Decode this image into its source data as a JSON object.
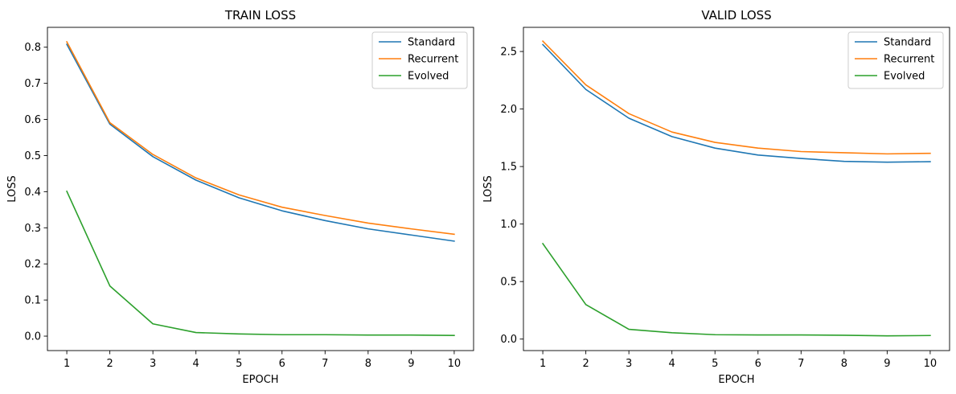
{
  "chart_data": [
    {
      "type": "line",
      "title": "TRAIN LOSS",
      "xlabel": "EPOCH",
      "ylabel": "LOSS",
      "x": [
        1,
        2,
        3,
        4,
        5,
        6,
        7,
        8,
        9,
        10
      ],
      "xlim": [
        0.55,
        10.45
      ],
      "ylim": [
        -0.04,
        0.855
      ],
      "yticks": [
        0.0,
        0.1,
        0.2,
        0.3,
        0.4,
        0.5,
        0.6,
        0.7,
        0.8
      ],
      "yticks_labels": [
        "0.0",
        "0.1",
        "0.2",
        "0.3",
        "0.4",
        "0.5",
        "0.6",
        "0.7",
        "0.8"
      ],
      "grid": false,
      "legend": "top-right",
      "series": [
        {
          "name": "Standard",
          "color": "#1f77b4",
          "values": [
            0.808,
            0.587,
            0.497,
            0.432,
            0.383,
            0.347,
            0.32,
            0.297,
            0.28,
            0.263
          ]
        },
        {
          "name": "Recurrent",
          "color": "#ff7f0e",
          "values": [
            0.815,
            0.591,
            0.503,
            0.438,
            0.391,
            0.357,
            0.334,
            0.313,
            0.297,
            0.282
          ]
        },
        {
          "name": "Evolved",
          "color": "#2ca02c",
          "values": [
            0.401,
            0.139,
            0.034,
            0.01,
            0.006,
            0.004,
            0.004,
            0.003,
            0.003,
            0.002
          ]
        }
      ]
    },
    {
      "type": "line",
      "title": "VALID LOSS",
      "xlabel": "EPOCH",
      "ylabel": "LOSS",
      "x": [
        1,
        2,
        3,
        4,
        5,
        6,
        7,
        8,
        9,
        10
      ],
      "xlim": [
        0.55,
        10.45
      ],
      "ylim": [
        -0.1,
        2.71
      ],
      "yticks": [
        0.0,
        0.5,
        1.0,
        1.5,
        2.0,
        2.5
      ],
      "yticks_labels": [
        "0.0",
        "0.5",
        "1.0",
        "1.5",
        "2.0",
        "2.5"
      ],
      "grid": false,
      "legend": "top-right",
      "series": [
        {
          "name": "Standard",
          "color": "#1f77b4",
          "values": [
            2.56,
            2.17,
            1.92,
            1.76,
            1.66,
            1.6,
            1.57,
            1.545,
            1.538,
            1.542
          ]
        },
        {
          "name": "Recurrent",
          "color": "#ff7f0e",
          "values": [
            2.59,
            2.21,
            1.96,
            1.8,
            1.71,
            1.66,
            1.63,
            1.62,
            1.61,
            1.615
          ]
        },
        {
          "name": "Evolved",
          "color": "#2ca02c",
          "values": [
            0.83,
            0.3,
            0.085,
            0.055,
            0.038,
            0.036,
            0.036,
            0.033,
            0.028,
            0.031
          ]
        }
      ]
    }
  ]
}
